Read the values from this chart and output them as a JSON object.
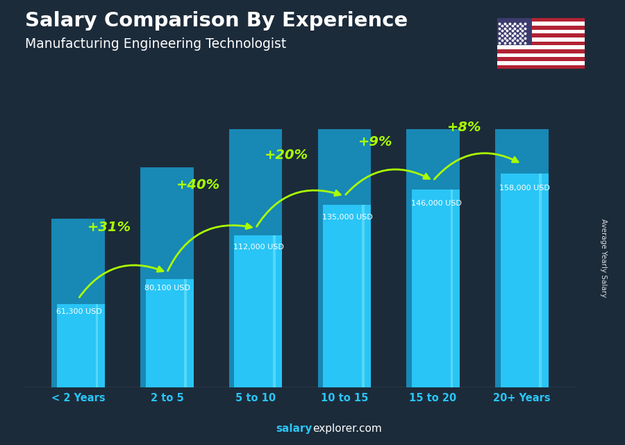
{
  "title": "Salary Comparison By Experience",
  "subtitle": "Manufacturing Engineering Technologist",
  "categories": [
    "< 2 Years",
    "2 to 5",
    "5 to 10",
    "10 to 15",
    "15 to 20",
    "20+ Years"
  ],
  "values": [
    61300,
    80100,
    112000,
    135000,
    146000,
    158000
  ],
  "value_labels": [
    "61,300 USD",
    "80,100 USD",
    "112,000 USD",
    "135,000 USD",
    "146,000 USD",
    "158,000 USD"
  ],
  "pct_changes": [
    "+31%",
    "+40%",
    "+20%",
    "+9%",
    "+8%"
  ],
  "bar_color": "#29c5f6",
  "bar_color_dark": "#1888b5",
  "bar_color_light": "#55d8f8",
  "bg_color": "#1c2b3a",
  "title_color": "#ffffff",
  "subtitle_color": "#ffffff",
  "label_color": "#ffffff",
  "value_label_color": "#ffffff",
  "pct_color": "#aaff00",
  "xlabel_color": "#29c5f6",
  "ylabel": "Average Yearly Salary",
  "footer_bold": "salary",
  "footer_normal": "explorer.com",
  "ylim_max": 185000,
  "bar_width": 0.6
}
